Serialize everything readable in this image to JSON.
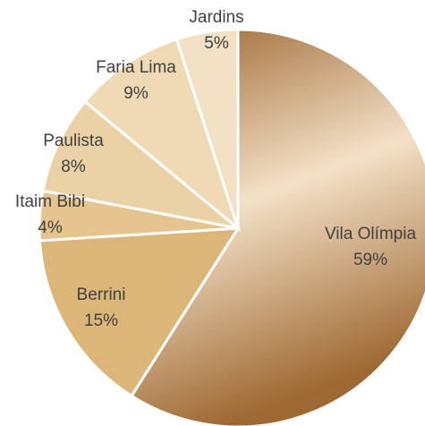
{
  "chart_data": {
    "type": "pie",
    "categories": [
      "Vila Olímpia",
      "Berrini",
      "Itaim Bibi",
      "Paulista",
      "Faria Lima",
      "Jardins"
    ],
    "values": [
      59,
      15,
      4,
      8,
      9,
      5
    ],
    "value_labels": [
      "59%",
      "15%",
      "4%",
      "8%",
      "9%",
      "5%"
    ],
    "colors": [
      "gradient",
      "#dcb678",
      "#e5c48f",
      "#ebd2a6",
      "#efdab5",
      "#f2e1c3"
    ]
  }
}
